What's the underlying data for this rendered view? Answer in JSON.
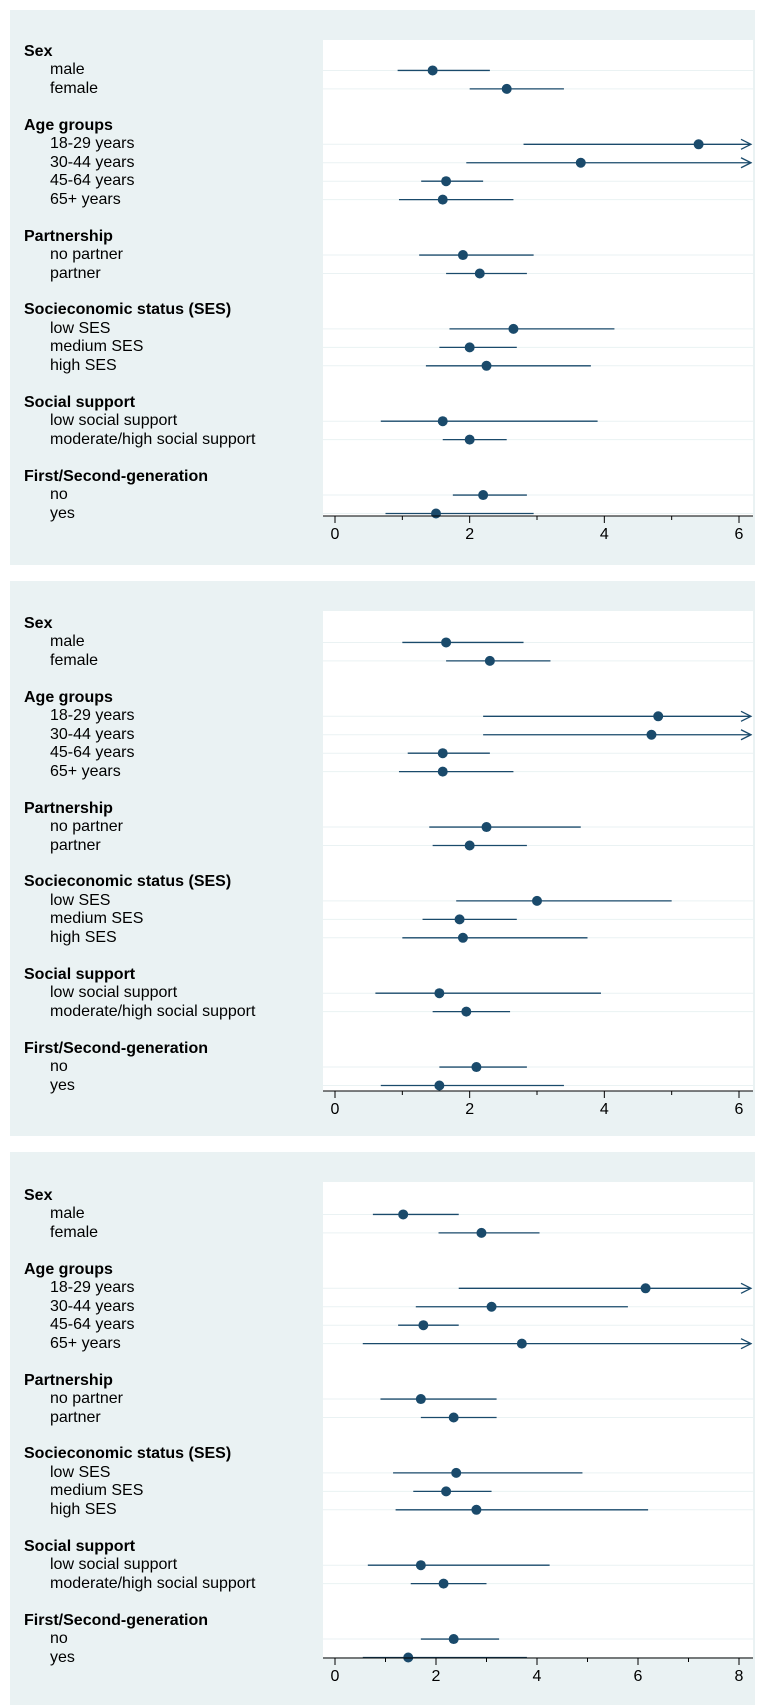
{
  "chart_data": [
    {
      "type": "forest",
      "xlim": [
        0,
        6
      ],
      "xticks": [
        "0",
        "2",
        "4",
        "6"
      ],
      "groups": [
        {
          "label": "Sex",
          "items": [
            {
              "label": "male",
              "est": 1.45,
              "lo": 0.93,
              "hi": 2.3
            },
            {
              "label": "female",
              "est": 2.55,
              "lo": 2.0,
              "hi": 3.4
            }
          ]
        },
        {
          "label": "Age groups",
          "items": [
            {
              "label": "18-29 years",
              "est": 5.4,
              "lo": 2.8,
              "hi": 6.0,
              "arrow": true
            },
            {
              "label": "30-44 years",
              "est": 3.65,
              "lo": 1.95,
              "hi": 6.0,
              "arrow": true
            },
            {
              "label": "45-64 years",
              "est": 1.65,
              "lo": 1.28,
              "hi": 2.2
            },
            {
              "label": "65+ years",
              "est": 1.6,
              "lo": 0.95,
              "hi": 2.65
            }
          ]
        },
        {
          "label": "Partnership",
          "items": [
            {
              "label": "no partner",
              "est": 1.9,
              "lo": 1.25,
              "hi": 2.95
            },
            {
              "label": "partner",
              "est": 2.15,
              "lo": 1.65,
              "hi": 2.85
            }
          ]
        },
        {
          "label": "Socieconomic status (SES)",
          "items": [
            {
              "label": "low SES",
              "est": 2.65,
              "lo": 1.7,
              "hi": 4.15
            },
            {
              "label": "medium SES",
              "est": 2.0,
              "lo": 1.55,
              "hi": 2.7
            },
            {
              "label": "high SES",
              "est": 2.25,
              "lo": 1.35,
              "hi": 3.8
            }
          ]
        },
        {
          "label": "Social support",
          "items": [
            {
              "label": "low social support",
              "est": 1.6,
              "lo": 0.68,
              "hi": 3.9
            },
            {
              "label": "moderate/high social support",
              "est": 2.0,
              "lo": 1.6,
              "hi": 2.55
            }
          ]
        },
        {
          "label": "First/Second-generation",
          "items": [
            {
              "label": "no",
              "est": 2.2,
              "lo": 1.75,
              "hi": 2.85
            },
            {
              "label": "yes",
              "est": 1.5,
              "lo": 0.75,
              "hi": 2.95
            }
          ]
        }
      ]
    },
    {
      "type": "forest",
      "xlim": [
        0,
        6
      ],
      "xticks": [
        "0",
        "2",
        "4",
        "6"
      ],
      "groups": [
        {
          "label": "Sex",
          "items": [
            {
              "label": "male",
              "est": 1.65,
              "lo": 1.0,
              "hi": 2.8
            },
            {
              "label": "female",
              "est": 2.3,
              "lo": 1.65,
              "hi": 3.2
            }
          ]
        },
        {
          "label": "Age groups",
          "items": [
            {
              "label": "18-29 years",
              "est": 4.8,
              "lo": 2.2,
              "hi": 6.0,
              "arrow": true
            },
            {
              "label": "30-44 years",
              "est": 4.7,
              "lo": 2.2,
              "hi": 6.0,
              "arrow": true
            },
            {
              "label": "45-64 years",
              "est": 1.6,
              "lo": 1.08,
              "hi": 2.3
            },
            {
              "label": "65+ years",
              "est": 1.6,
              "lo": 0.95,
              "hi": 2.65
            }
          ]
        },
        {
          "label": "Partnership",
          "items": [
            {
              "label": "no partner",
              "est": 2.25,
              "lo": 1.4,
              "hi": 3.65
            },
            {
              "label": "partner",
              "est": 2.0,
              "lo": 1.45,
              "hi": 2.85
            }
          ]
        },
        {
          "label": "Socieconomic status (SES)",
          "items": [
            {
              "label": "low SES",
              "est": 3.0,
              "lo": 1.8,
              "hi": 5.0
            },
            {
              "label": "medium SES",
              "est": 1.85,
              "lo": 1.3,
              "hi": 2.7
            },
            {
              "label": "high SES",
              "est": 1.9,
              "lo": 1.0,
              "hi": 3.75
            }
          ]
        },
        {
          "label": "Social support",
          "items": [
            {
              "label": "low social support",
              "est": 1.55,
              "lo": 0.6,
              "hi": 3.95
            },
            {
              "label": "moderate/high social support",
              "est": 1.95,
              "lo": 1.45,
              "hi": 2.6
            }
          ]
        },
        {
          "label": "First/Second-generation",
          "items": [
            {
              "label": "no",
              "est": 2.1,
              "lo": 1.55,
              "hi": 2.85
            },
            {
              "label": "yes",
              "est": 1.55,
              "lo": 0.68,
              "hi": 3.4
            }
          ]
        }
      ]
    },
    {
      "type": "forest",
      "xlim": [
        0,
        8
      ],
      "xticks": [
        "0",
        "2",
        "4",
        "6",
        "8"
      ],
      "groups": [
        {
          "label": "Sex",
          "items": [
            {
              "label": "male",
              "est": 1.35,
              "lo": 0.75,
              "hi": 2.45
            },
            {
              "label": "female",
              "est": 2.9,
              "lo": 2.05,
              "hi": 4.05
            }
          ]
        },
        {
          "label": "Age groups",
          "items": [
            {
              "label": "18-29 years",
              "est": 6.15,
              "lo": 2.45,
              "hi": 8.0,
              "arrow": true
            },
            {
              "label": "30-44 years",
              "est": 3.1,
              "lo": 1.6,
              "hi": 5.8
            },
            {
              "label": "45-64 years",
              "est": 1.75,
              "lo": 1.25,
              "hi": 2.45
            },
            {
              "label": "65+ years",
              "est": 3.7,
              "lo": 0.55,
              "hi": 8.0,
              "arrow": true
            }
          ]
        },
        {
          "label": "Partnership",
          "items": [
            {
              "label": "no partner",
              "est": 1.7,
              "lo": 0.9,
              "hi": 3.2
            },
            {
              "label": "partner",
              "est": 2.35,
              "lo": 1.7,
              "hi": 3.2
            }
          ]
        },
        {
          "label": "Socieconomic status (SES)",
          "items": [
            {
              "label": "low SES",
              "est": 2.4,
              "lo": 1.15,
              "hi": 4.9
            },
            {
              "label": "medium SES",
              "est": 2.2,
              "lo": 1.55,
              "hi": 3.1
            },
            {
              "label": "high SES",
              "est": 2.8,
              "lo": 1.2,
              "hi": 6.2
            }
          ]
        },
        {
          "label": "Social support",
          "items": [
            {
              "label": "low social support",
              "est": 1.7,
              "lo": 0.65,
              "hi": 4.25
            },
            {
              "label": "moderate/high social support",
              "est": 2.15,
              "lo": 1.5,
              "hi": 3.0
            }
          ]
        },
        {
          "label": "First/Second-generation",
          "items": [
            {
              "label": "no",
              "est": 2.35,
              "lo": 1.7,
              "hi": 3.25
            },
            {
              "label": "yes",
              "est": 1.45,
              "lo": 0.55,
              "hi": 3.8
            }
          ]
        }
      ]
    }
  ],
  "colors": {
    "marker": "#1a4a6b",
    "line": "#1a4a6b",
    "panel_bg": "#eaf2f3",
    "grid": "#eaf2f3"
  }
}
